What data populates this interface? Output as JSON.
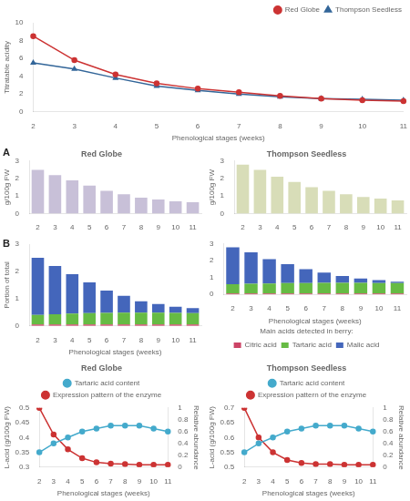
{
  "chart_data": [
    {
      "type": "line",
      "x_label": "Phenological stages (weeks)",
      "y_label": "Titratable acidity",
      "categories": [
        "2",
        "3",
        "4",
        "5",
        "6",
        "7",
        "8",
        "9",
        "10",
        "11"
      ],
      "series": [
        {
          "name": "Red Globe",
          "color": "#cc3333",
          "marker": "circle",
          "values": [
            8.5,
            5.8,
            4.2,
            3.2,
            2.6,
            2.2,
            1.8,
            1.5,
            1.3,
            1.2
          ]
        },
        {
          "name": "Thompson Seedless",
          "color": "#336699",
          "marker": "triangle",
          "values": [
            5.5,
            4.8,
            3.8,
            2.9,
            2.4,
            2.0,
            1.7,
            1.5,
            1.4,
            1.3
          ]
        }
      ],
      "ylim": [
        0,
        10
      ],
      "yticks": [
        0,
        2,
        4,
        6,
        8,
        10
      ],
      "legend": "upper right",
      "grid": false
    },
    {
      "type": "bar",
      "title": "Red Globe",
      "y_label": "g/100g FW",
      "annotations": [
        "A"
      ],
      "categories": [
        "2",
        "3",
        "4",
        "5",
        "6",
        "7",
        "8",
        "9",
        "10",
        "11"
      ],
      "values": [
        2.5,
        2.2,
        1.9,
        1.6,
        1.3,
        1.1,
        0.9,
        0.8,
        0.7,
        0.65
      ],
      "color": "#c8c0d8",
      "ylim": [
        0,
        3
      ],
      "yticks": [
        0,
        1,
        2,
        3
      ],
      "grid": false
    },
    {
      "type": "bar",
      "stacked": true,
      "x_label": "Phenological stages (weeks)",
      "y_label": "Portion of total",
      "annotations": [
        "B"
      ],
      "categories": [
        "2",
        "3",
        "4",
        "5",
        "6",
        "7",
        "8",
        "9",
        "10",
        "11"
      ],
      "series": [
        {
          "color": "#cc4466",
          "values": [
            0.05,
            0.05,
            0.05,
            0.05,
            0.05,
            0.05,
            0.05,
            0.05,
            0.05,
            0.05
          ]
        },
        {
          "color": "#66bb44",
          "values": [
            0.35,
            0.38,
            0.4,
            0.42,
            0.43,
            0.44,
            0.44,
            0.44,
            0.43,
            0.42
          ]
        },
        {
          "color": "#4466bb",
          "values": [
            2.1,
            1.77,
            1.45,
            1.13,
            0.82,
            0.61,
            0.41,
            0.31,
            0.22,
            0.18
          ]
        }
      ],
      "ylim": [
        0,
        3
      ],
      "yticks": [
        0,
        1,
        2,
        3
      ],
      "grid": false
    },
    {
      "type": "bar",
      "title": "Thompson Seedless",
      "y_label": "g/100g FW",
      "categories": [
        "2",
        "3",
        "4",
        "5",
        "6",
        "7",
        "8",
        "9",
        "10",
        "11"
      ],
      "values": [
        2.8,
        2.5,
        2.1,
        1.8,
        1.5,
        1.3,
        1.1,
        0.95,
        0.85,
        0.75
      ],
      "color": "#d8ddb8",
      "ylim": [
        0,
        3
      ],
      "yticks": [
        0,
        1,
        2,
        3
      ],
      "grid": false
    },
    {
      "type": "bar",
      "stacked": true,
      "x_label": "Phenological stages (weeks)",
      "annotations": [
        "Main acids detected in berry:"
      ],
      "categories": [
        "2",
        "3",
        "4",
        "5",
        "6",
        "7",
        "8",
        "9",
        "10",
        "11"
      ],
      "series": [
        {
          "name": "Citric acid",
          "color": "#cc4466",
          "values": [
            0.05,
            0.05,
            0.05,
            0.05,
            0.05,
            0.05,
            0.05,
            0.05,
            0.05,
            0.05
          ]
        },
        {
          "name": "Tartaric acid",
          "color": "#66bb44",
          "values": [
            0.55,
            0.58,
            0.6,
            0.62,
            0.63,
            0.64,
            0.64,
            0.64,
            0.63,
            0.62
          ]
        },
        {
          "name": "Malic acid",
          "color": "#4466bb",
          "values": [
            2.2,
            1.87,
            1.45,
            1.13,
            0.82,
            0.61,
            0.41,
            0.26,
            0.17,
            0.08
          ]
        }
      ],
      "ylim": [
        0,
        3
      ],
      "yticks": [
        0,
        1,
        2,
        3
      ],
      "legend": "bottom",
      "grid": false
    },
    {
      "type": "line",
      "title": "Red Globe",
      "x_label": "Phenological stages (weeks)",
      "y_label": "L-acid (g/100g FW)",
      "y2_label": "Relative abundance",
      "categories": [
        "2",
        "3",
        "4",
        "5",
        "6",
        "7",
        "8",
        "9",
        "10",
        "11"
      ],
      "series": [
        {
          "name": "Tartaric acid content",
          "color": "#44aacc",
          "marker": "circle",
          "values": [
            0.35,
            0.38,
            0.4,
            0.42,
            0.43,
            0.44,
            0.44,
            0.44,
            0.43,
            0.42
          ]
        },
        {
          "name": "Expression pattern of the enzyme",
          "color": "#cc3333",
          "marker": "circle",
          "axis": "y2",
          "values": [
            1.0,
            0.55,
            0.3,
            0.15,
            0.08,
            0.06,
            0.05,
            0.04,
            0.04,
            0.04
          ]
        }
      ],
      "ylim": [
        0.3,
        0.5
      ],
      "yticks": [
        0.3,
        0.35,
        0.4,
        0.45,
        0.5
      ],
      "y2lim": [
        0,
        1
      ],
      "y2ticks": [
        0,
        0.2,
        0.4,
        0.6,
        0.8,
        1
      ],
      "legend": "top",
      "grid": false
    },
    {
      "type": "line",
      "title": "Thompson Seedless",
      "x_label": "Phenological stages (weeks)",
      "y_label": "L-acid (g/100g FW)",
      "y2_label": "Relative abundance",
      "categories": [
        "2",
        "3",
        "4",
        "5",
        "6",
        "7",
        "8",
        "9",
        "10",
        "11"
      ],
      "series": [
        {
          "name": "Tartaric acid content",
          "color": "#44aacc",
          "marker": "circle",
          "values": [
            0.55,
            0.58,
            0.6,
            0.62,
            0.63,
            0.64,
            0.64,
            0.64,
            0.63,
            0.62
          ]
        },
        {
          "name": "Expression pattern of the enzyme",
          "color": "#cc3333",
          "marker": "circle",
          "axis": "y2",
          "values": [
            1.0,
            0.5,
            0.25,
            0.12,
            0.07,
            0.05,
            0.05,
            0.04,
            0.04,
            0.04
          ]
        }
      ],
      "ylim": [
        0.5,
        0.7
      ],
      "yticks": [
        0.5,
        0.55,
        0.6,
        0.65,
        0.7
      ],
      "y2lim": [
        0,
        1
      ],
      "y2ticks": [
        0,
        0.2,
        0.4,
        0.6,
        0.8,
        1
      ],
      "legend": "top",
      "grid": false
    }
  ]
}
